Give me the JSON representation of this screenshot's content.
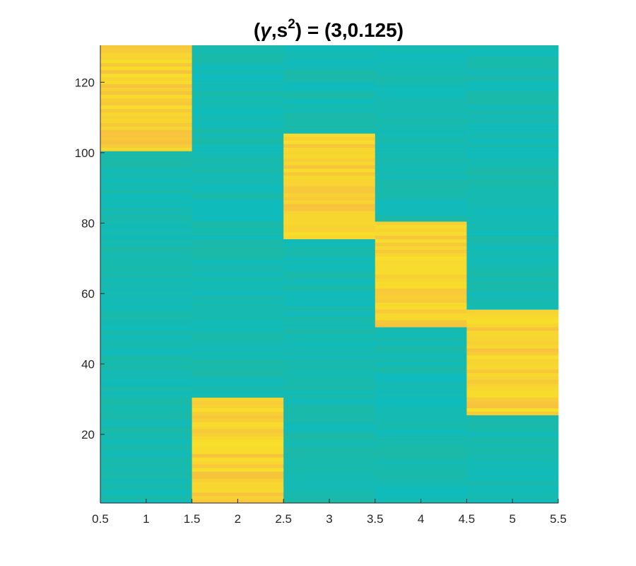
{
  "chart_data": {
    "type": "heatmap",
    "title_parts": [
      "(",
      "γ",
      ",s",
      "2",
      ") = (3,0.125)"
    ],
    "x_range": [
      0.5,
      5.5
    ],
    "y_range": [
      0.5,
      130.5
    ],
    "x_ticks": [
      "0.5",
      "1",
      "1.5",
      "2",
      "2.5",
      "3",
      "3.5",
      "4",
      "4.5",
      "5",
      "5.5"
    ],
    "y_ticks": [
      "20",
      "40",
      "60",
      "80",
      "100",
      "120"
    ],
    "columns": [
      1,
      2,
      3,
      4,
      5
    ],
    "rows": 130,
    "high_row_ranges": [
      {
        "column": 1,
        "from_row": 101,
        "to_row": 130
      },
      {
        "column": 2,
        "from_row": 1,
        "to_row": 30
      },
      {
        "column": 3,
        "from_row": 76,
        "to_row": 105
      },
      {
        "column": 4,
        "from_row": 51,
        "to_row": 80
      },
      {
        "column": 5,
        "from_row": 26,
        "to_row": 55
      }
    ],
    "colors": {
      "low": "#12bcb3",
      "high": "#f7df2a"
    },
    "grid": false,
    "colorbar": false
  }
}
